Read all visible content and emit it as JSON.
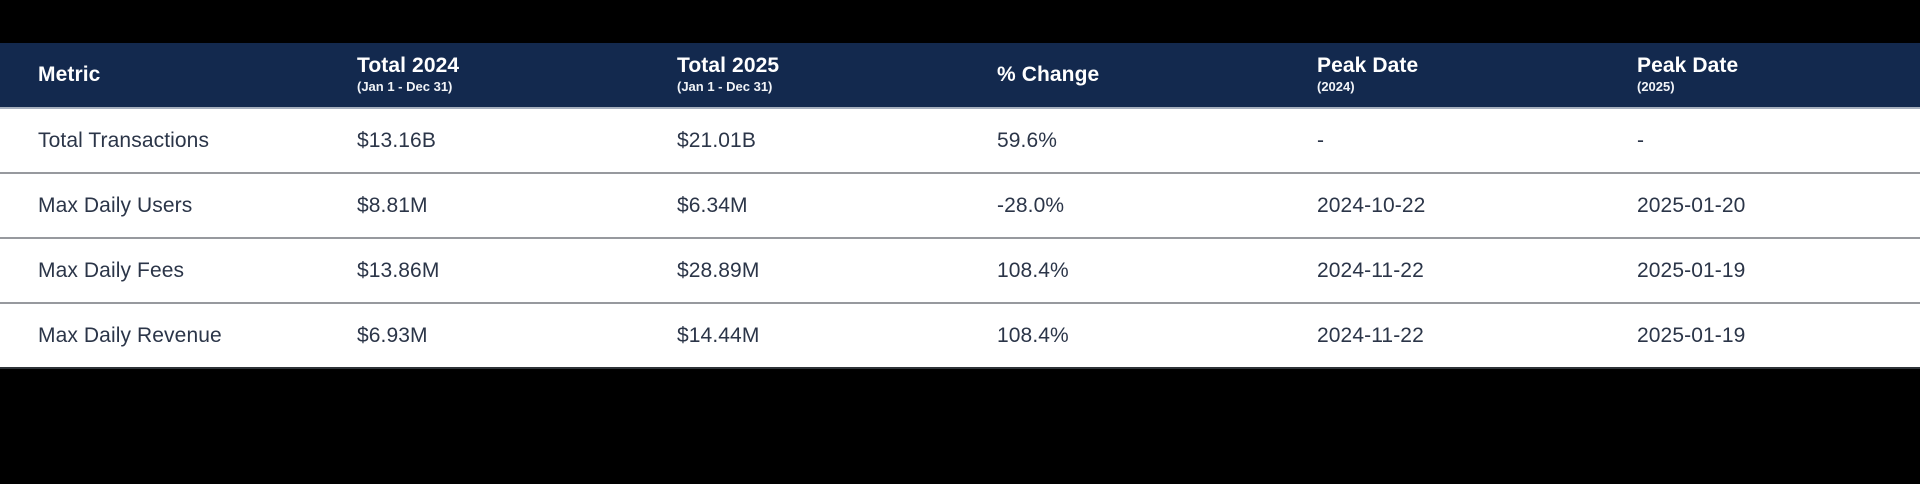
{
  "page": {
    "background_color": "#000000"
  },
  "table": {
    "header_bg_color": "#13294e",
    "header_text_color": "#ffffff",
    "body_text_color": "#2b3548",
    "row_bg_color": "#ffffff",
    "row_divider_color": "#97999e",
    "columns": [
      {
        "label": "Metric",
        "sublabel": ""
      },
      {
        "label": "Total 2024",
        "sublabel": "(Jan 1 - Dec 31)"
      },
      {
        "label": "Total 2025",
        "sublabel": "(Jan 1 - Dec 31)"
      },
      {
        "label": "% Change",
        "sublabel": ""
      },
      {
        "label": "Peak Date",
        "sublabel": "(2024)"
      },
      {
        "label": "Peak Date",
        "sublabel": "(2025)"
      }
    ],
    "rows": [
      {
        "cells": [
          "Total Transactions",
          "$13.16B",
          "$21.01B",
          "59.6%",
          "-",
          "-"
        ]
      },
      {
        "cells": [
          "Max Daily Users",
          "$8.81M",
          "$6.34M",
          "-28.0%",
          "2024-10-22",
          "2025-01-20"
        ]
      },
      {
        "cells": [
          "Max Daily Fees",
          "$13.86M",
          "$28.89M",
          "108.4%",
          "2024-11-22",
          "2025-01-19"
        ]
      },
      {
        "cells": [
          "Max Daily Revenue",
          "$6.93M",
          "$14.44M",
          "108.4%",
          "2024-11-22",
          "2025-01-19"
        ]
      }
    ]
  },
  "chart_data": {
    "type": "table",
    "title": "",
    "columns": [
      "Metric",
      "Total 2024 (Jan 1 - Dec 31)",
      "Total 2025 (Jan 1 - Dec 31)",
      "% Change",
      "Peak Date (2024)",
      "Peak Date (2025)"
    ],
    "rows": [
      [
        "Total Transactions",
        "$13.16B",
        "$21.01B",
        "59.6%",
        "-",
        "-"
      ],
      [
        "Max Daily Users",
        "$8.81M",
        "$6.34M",
        "-28.0%",
        "2024-10-22",
        "2025-01-20"
      ],
      [
        "Max Daily Fees",
        "$13.86M",
        "$28.89M",
        "108.4%",
        "2024-11-22",
        "2025-01-19"
      ],
      [
        "Max Daily Revenue",
        "$6.93M",
        "$14.44M",
        "108.4%",
        "2024-11-22",
        "2025-01-19"
      ]
    ]
  }
}
